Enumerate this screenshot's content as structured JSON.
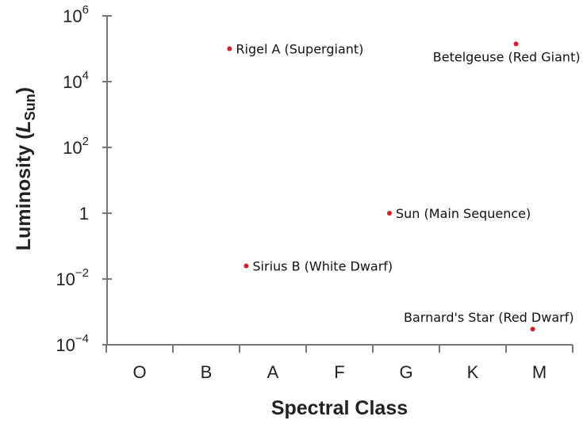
{
  "chart_data": {
    "type": "scatter",
    "xlabel": "Spectral Class",
    "ylabel": {
      "main": "Luminosity (",
      "italic": "L",
      "sub": "Sun",
      "close": ")"
    },
    "categories": [
      "O",
      "B",
      "A",
      "F",
      "G",
      "K",
      "M"
    ],
    "y_scale": "log10",
    "ylim": [
      0.0001,
      1000000
    ],
    "yticks": [
      {
        "value": 1000000,
        "base": "10",
        "exp": "6"
      },
      {
        "value": 10000,
        "base": "10",
        "exp": "4"
      },
      {
        "value": 100,
        "base": "10",
        "exp": "2"
      },
      {
        "value": 1,
        "base": "1",
        "exp": ""
      },
      {
        "value": 0.01,
        "base": "10",
        "exp": "−2"
      },
      {
        "value": 0.0001,
        "base": "10",
        "exp": "−4"
      }
    ],
    "point_color": "#d0202a",
    "points": [
      {
        "name": "Rigel A (Supergiant)",
        "x": 1.35,
        "y": 100000,
        "label_side": "right"
      },
      {
        "name": "Betelgeuse (Red Giant)",
        "x": 5.65,
        "y": 140000,
        "label_side": "below-left"
      },
      {
        "name": "Sun (Main Sequence)",
        "x": 3.75,
        "y": 1,
        "label_side": "right"
      },
      {
        "name": "Sirius B (White Dwarf)",
        "x": 1.6,
        "y": 0.025,
        "label_side": "right"
      },
      {
        "name": "Barnard's Star (Red Dwarf)",
        "x": 5.9,
        "y": 0.0003,
        "label_side": "above-left"
      }
    ],
    "grid": false,
    "legend": "none"
  }
}
